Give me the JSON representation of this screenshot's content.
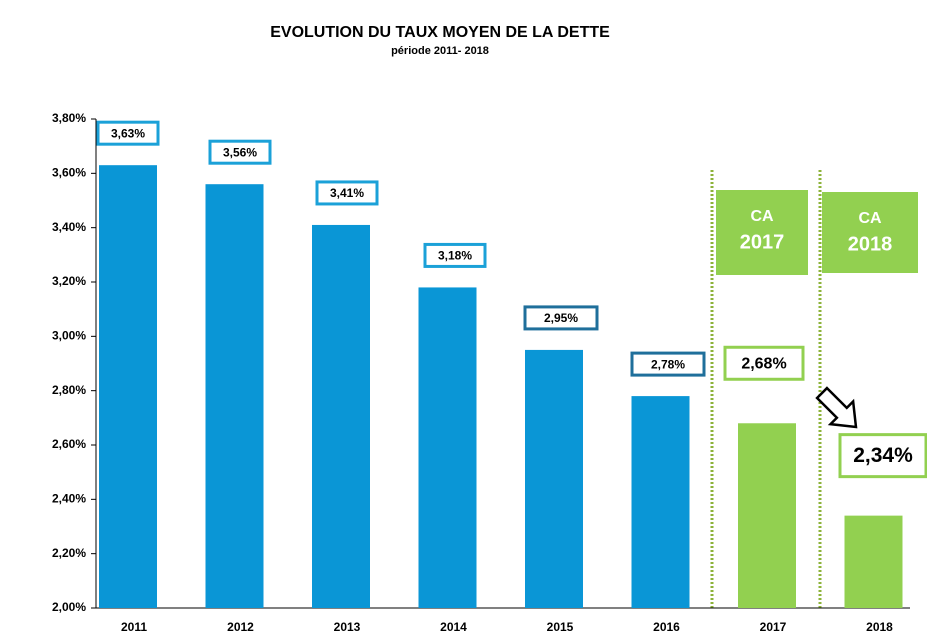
{
  "chart_data": {
    "type": "bar",
    "title": "EVOLUTION DU TAUX MOYEN DE LA DETTE",
    "subtitle": "période 2011- 2018",
    "categories": [
      "2011",
      "2012",
      "2013",
      "2014",
      "2015",
      "2016",
      "2017",
      "2018"
    ],
    "values": [
      3.63,
      3.56,
      3.41,
      3.18,
      2.95,
      2.78,
      2.68,
      2.34
    ],
    "value_labels": [
      "3,63%",
      "3,56%",
      "3,41%",
      "3,18%",
      "2,95%",
      "2,78%",
      "2,68%",
      "2,34%"
    ],
    "colors": [
      "#0a96d6",
      "#0a96d6",
      "#0a96d6",
      "#0a96d6",
      "#0a96d6",
      "#0a96d6",
      "#92d050",
      "#92d050"
    ],
    "label_colors": [
      "#1ba1d8",
      "#1ba1d8",
      "#1ba1d8",
      "#1ba1d8",
      "#1f6f9b",
      "#1f6f9b",
      "#92d050",
      "#92d050"
    ],
    "ylim": [
      2.0,
      3.8
    ],
    "yticks": [
      {
        "value": 2.0,
        "label": "2,00%"
      },
      {
        "value": 2.2,
        "label": "2,20%"
      },
      {
        "value": 2.4,
        "label": "2,40%"
      },
      {
        "value": 2.6,
        "label": "2,60%"
      },
      {
        "value": 2.8,
        "label": "2,80%"
      },
      {
        "value": 3.0,
        "label": "3,00%"
      },
      {
        "value": 3.2,
        "label": "3,20%"
      },
      {
        "value": 3.4,
        "label": "3,40%"
      },
      {
        "value": 3.6,
        "label": "3,60%"
      },
      {
        "value": 3.8,
        "label": "3,80%"
      }
    ],
    "annotations": [
      {
        "lines": [
          "CA",
          "2017"
        ]
      },
      {
        "lines": [
          "CA",
          "2018"
        ]
      }
    ]
  }
}
